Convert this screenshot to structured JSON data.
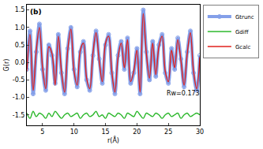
{
  "chart_data": {
    "type": "line",
    "title": "(b)",
    "x_label": "r(Å)",
    "y_label": "G(r)",
    "annotation": "Rw=0.173",
    "x": [
      2.5,
      3.0,
      3.5,
      4.0,
      4.5,
      5.0,
      5.5,
      6.0,
      6.5,
      7.0,
      7.5,
      8.0,
      8.5,
      9.0,
      9.5,
      10.0,
      10.5,
      11.0,
      11.5,
      12.0,
      12.5,
      13.0,
      13.5,
      14.0,
      14.5,
      15.0,
      15.5,
      16.0,
      16.5,
      17.0,
      17.5,
      18.0,
      18.5,
      19.0,
      19.5,
      20.0,
      20.5,
      21.0,
      21.5,
      22.0,
      22.5,
      23.0,
      23.5,
      24.0,
      24.5,
      25.0,
      25.5,
      26.0,
      26.5,
      27.0,
      27.5,
      28.0,
      28.5,
      29.0,
      29.5,
      30.0
    ],
    "series": [
      {
        "name": "Gtrunc",
        "color": "#6f8fe6",
        "marker": "circle-open",
        "line_style": "solid",
        "values": [
          -0.2,
          0.9,
          -0.9,
          0.3,
          1.1,
          -0.2,
          -0.8,
          0.5,
          0.2,
          -0.6,
          0.8,
          -0.3,
          -0.9,
          0.4,
          1.0,
          -0.2,
          -0.7,
          0.3,
          0.6,
          -0.5,
          -0.8,
          0.2,
          0.9,
          0.1,
          -0.6,
          0.5,
          0.8,
          -0.3,
          -0.9,
          0.2,
          0.6,
          -0.2,
          0.7,
          -0.6,
          -0.3,
          0.4,
          -0.9,
          1.5,
          0.3,
          -0.5,
          0.6,
          -0.4,
          0.5,
          0.8,
          -0.3,
          -0.6,
          0.4,
          -0.2,
          0.7,
          0.1,
          -0.7,
          0.3,
          0.9,
          -0.3,
          -0.8,
          0.2
        ]
      },
      {
        "name": "Gdiff",
        "color": "#2cb82c",
        "marker": "none",
        "line_style": "solid",
        "values": [
          -1.45,
          -1.6,
          -1.4,
          -1.55,
          -1.45,
          -1.5,
          -1.6,
          -1.45,
          -1.55,
          -1.4,
          -1.5,
          -1.6,
          -1.5,
          -1.45,
          -1.55,
          -1.5,
          -1.45,
          -1.6,
          -1.5,
          -1.45,
          -1.55,
          -1.5,
          -1.4,
          -1.55,
          -1.5,
          -1.6,
          -1.45,
          -1.5,
          -1.55,
          -1.45,
          -1.5,
          -1.6,
          -1.45,
          -1.5,
          -1.55,
          -1.4,
          -1.5,
          -1.6,
          -1.45,
          -1.5,
          -1.55,
          -1.45,
          -1.5,
          -1.6,
          -1.5,
          -1.45,
          -1.55,
          -1.5,
          -1.45,
          -1.6,
          -1.5,
          -1.45,
          -1.55,
          -1.5,
          -1.45,
          -1.5
        ]
      },
      {
        "name": "Gcalc",
        "color": "#e0201b",
        "marker": "none",
        "line_style": "solid",
        "values": [
          -0.25,
          0.8,
          -0.8,
          0.35,
          1.0,
          -0.15,
          -0.75,
          0.45,
          0.25,
          -0.65,
          0.75,
          -0.25,
          -0.85,
          0.35,
          0.95,
          -0.25,
          -0.65,
          0.35,
          0.55,
          -0.45,
          -0.75,
          0.25,
          0.85,
          0.05,
          -0.55,
          0.55,
          0.75,
          -0.25,
          -0.85,
          0.15,
          0.55,
          -0.15,
          0.65,
          -0.55,
          -0.25,
          0.35,
          -0.85,
          1.4,
          0.25,
          -0.45,
          0.55,
          -0.35,
          0.45,
          0.75,
          -0.25,
          -0.55,
          0.35,
          -0.15,
          0.65,
          0.05,
          -0.65,
          0.25,
          0.85,
          -0.25,
          -0.75,
          0.15
        ]
      }
    ],
    "xlim": [
      2.5,
      30
    ],
    "ylim": [
      -1.8,
      1.65
    ],
    "xticks": [
      5,
      10,
      15,
      20,
      25,
      30
    ],
    "yticks": [
      -1.5,
      -1.0,
      -0.5,
      0.0,
      0.5,
      1.0,
      1.5
    ],
    "grid": false,
    "legend": "upper right"
  }
}
